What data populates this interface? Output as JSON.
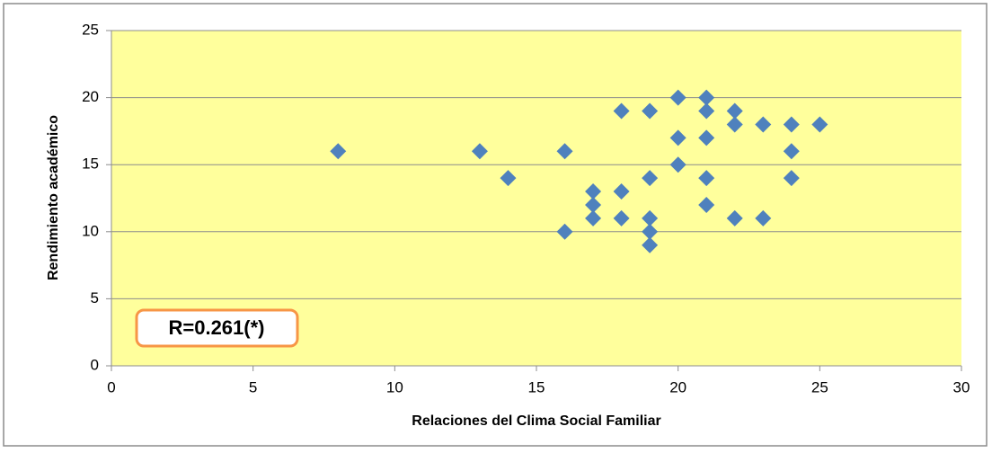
{
  "chart_data": {
    "type": "scatter",
    "x_label": "Relaciones del Clima Social Familiar",
    "y_label": "Rendimiento académico",
    "annotation": "R=0.261(*)",
    "color": "#4f81bd",
    "background": "#ffff9c",
    "grid": true,
    "x": [
      8,
      13,
      14,
      16,
      16,
      17,
      17,
      17,
      18,
      18,
      18,
      19,
      19,
      19,
      19,
      19,
      20,
      20,
      20,
      21,
      21,
      21,
      21,
      21,
      22,
      22,
      22,
      23,
      23,
      24,
      24,
      24,
      25
    ],
    "values": [
      16,
      16,
      14,
      16,
      10,
      13,
      12,
      11,
      19,
      13,
      11,
      19,
      14,
      11,
      10,
      9,
      20,
      17,
      15,
      20,
      19,
      17,
      14,
      12,
      19,
      18,
      11,
      18,
      11,
      18,
      16,
      14,
      18
    ],
    "xlim": [
      0,
      30
    ],
    "xticks": [
      0,
      5,
      10,
      15,
      20,
      25,
      30
    ],
    "ylim": [
      0,
      25
    ],
    "yticks": [
      0,
      5,
      10,
      15,
      20,
      25
    ]
  }
}
